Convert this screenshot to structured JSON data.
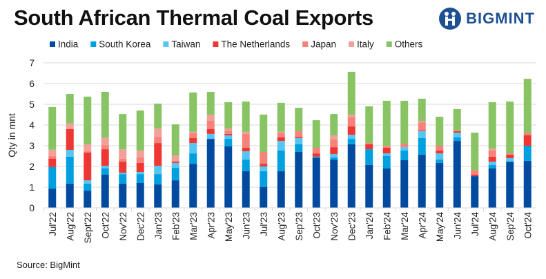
{
  "title": "South African Thermal Coal Exports",
  "logo": {
    "text": "BIGMINT"
  },
  "source": "Source: BigMint",
  "chart_data": {
    "type": "bar",
    "stacked": true,
    "title": "South African Thermal Coal Exports",
    "xlabel": "",
    "ylabel": "Qty in mnt",
    "ylim": [
      0,
      7
    ],
    "yticks": [
      "0",
      "1",
      "2",
      "3",
      "4",
      "5",
      "6",
      "7"
    ],
    "grid": true,
    "legend_position": "top",
    "categories": [
      "Jul'22",
      "Aug'22",
      "Sept'22",
      "Oct'22",
      "Nov'22",
      "Dec'22",
      "Jan'23",
      "Feb'23",
      "Mar'23",
      "Apr'23",
      "May'23",
      "Jun'23",
      "Jul'23",
      "Aug'23",
      "Sep'23",
      "Oct'23",
      "Nov'23",
      "Dec'23",
      "Jan'24",
      "Feb'24",
      "Mar'24",
      "Apr'24",
      "May'24",
      "Jun'24",
      "Jul'24",
      "Aug'24",
      "Sep'24",
      "Oct'24"
    ],
    "series": [
      {
        "name": "India",
        "color": "#004b9f",
        "values": [
          0.93,
          1.17,
          0.83,
          1.6,
          1.17,
          1.2,
          1.13,
          1.33,
          2.13,
          3.33,
          2.97,
          1.77,
          1.0,
          1.77,
          2.7,
          2.4,
          2.33,
          3.07,
          2.07,
          1.9,
          2.3,
          2.57,
          2.17,
          3.23,
          1.53,
          1.9,
          2.23,
          2.27
        ]
      },
      {
        "name": "South Korea",
        "color": "#00a0e0",
        "values": [
          1.04,
          1.3,
          0.34,
          0.3,
          0.46,
          0.43,
          0.5,
          0.6,
          0.5,
          0,
          0.36,
          0.56,
          0.77,
          1.0,
          0.37,
          0.07,
          0.1,
          0.26,
          0.76,
          0.6,
          0.47,
          0.8,
          0.16,
          0.17,
          0,
          0.17,
          0,
          0.73
        ]
      },
      {
        "name": "Taiwan",
        "color": "#55c5f2",
        "values": [
          0,
          0.33,
          0.16,
          0.13,
          0.07,
          0.1,
          0.4,
          0.24,
          0.5,
          0.24,
          0.17,
          0.4,
          0.23,
          0.46,
          0.3,
          0,
          0.17,
          0.2,
          0,
          0.13,
          0.16,
          0.33,
          0.3,
          0.23,
          0,
          0.16,
          0.17,
          0
        ]
      },
      {
        "name": "The Netherlands",
        "color": "#ee3733",
        "values": [
          0.41,
          1.0,
          1.34,
          0.8,
          0.53,
          0.44,
          1.1,
          0.06,
          0.24,
          0.23,
          0.07,
          0.17,
          0.13,
          0.17,
          0.06,
          0.16,
          0.33,
          0.4,
          0.24,
          0.27,
          0,
          0.03,
          0.14,
          0.07,
          0.07,
          0.24,
          0.17,
          0.5
        ]
      },
      {
        "name": "Japan",
        "color": "#f6827a",
        "values": [
          0.13,
          0,
          0.06,
          0.2,
          0.14,
          0.26,
          0.3,
          0.04,
          0.23,
          0.4,
          0.16,
          0.67,
          0.57,
          0.23,
          0.27,
          0.27,
          0.37,
          0.44,
          0.06,
          0.07,
          0.17,
          0.4,
          0.23,
          0.03,
          0.23,
          0.3,
          0.06,
          0.13
        ]
      },
      {
        "name": "Italy",
        "color": "#f1a09a",
        "values": [
          0.3,
          0.27,
          0.34,
          0.37,
          0.46,
          0.34,
          0.4,
          0.26,
          0.07,
          0.3,
          0.1,
          0.1,
          0,
          0.04,
          0,
          0,
          0.2,
          0.13,
          0,
          0.03,
          0,
          0.07,
          0,
          0,
          0,
          0.1,
          0,
          0
        ]
      },
      {
        "name": "Others",
        "color": "#88c463",
        "values": [
          2.06,
          1.43,
          2.3,
          2.2,
          1.7,
          1.93,
          1.2,
          1.5,
          1.9,
          1.1,
          1.27,
          1.46,
          1.8,
          1.4,
          1.13,
          1.33,
          1.03,
          2.07,
          1.77,
          2.17,
          2.07,
          1.07,
          1.4,
          1.04,
          1.8,
          2.23,
          2.5,
          2.6
        ]
      }
    ]
  }
}
